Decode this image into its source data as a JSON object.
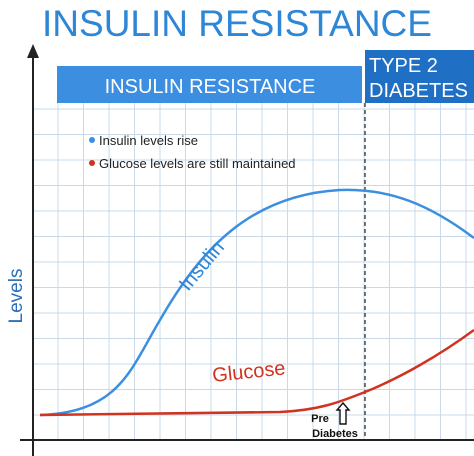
{
  "title": "INSULIN RESISTANCE",
  "banner": {
    "phase": "INSULIN RESISTANCE",
    "type2": [
      "TYPE 2",
      "DIABETES"
    ]
  },
  "legend": [
    "Insulin levels rise",
    "Glucose levels are still maintained"
  ],
  "curves": {
    "insulin": "Insulin",
    "glucose": "Glucose"
  },
  "y_axis_label": "Levels",
  "marker": [
    "Pre",
    "Diabetes"
  ]
}
